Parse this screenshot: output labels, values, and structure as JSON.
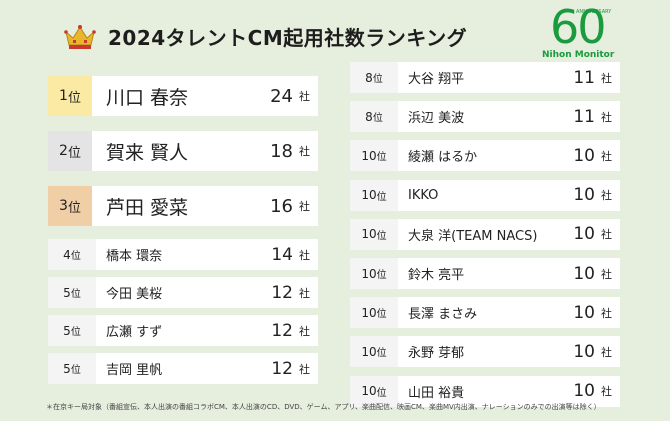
{
  "header": {
    "title": "2024タレントCM起用社数ランキング",
    "crown_icon": "crown-icon",
    "logo": {
      "mark": "60",
      "tagline": "ANNIVERSARY",
      "name": "Nihon Monitor",
      "color": "#1b9a3e"
    }
  },
  "unit": "社",
  "rank_suffix": "位",
  "colors": {
    "gold": "#fbeaa4",
    "silver": "#e4e4e4",
    "bronze": "#f0cfa6",
    "background": "#e6eedd"
  },
  "rankings_left": [
    {
      "rank": "1",
      "name": "川口 春奈",
      "count": "24",
      "tier": "gold"
    },
    {
      "rank": "2",
      "name": "賀来 賢人",
      "count": "18",
      "tier": "silver"
    },
    {
      "rank": "3",
      "name": "芦田 愛菜",
      "count": "16",
      "tier": "bronze"
    },
    {
      "rank": "4",
      "name": "橋本 環奈",
      "count": "14"
    },
    {
      "rank": "5",
      "name": "今田 美桜",
      "count": "12"
    },
    {
      "rank": "5",
      "name": "広瀬 すず",
      "count": "12"
    },
    {
      "rank": "5",
      "name": "吉岡 里帆",
      "count": "12"
    }
  ],
  "rankings_right": [
    {
      "rank": "8",
      "name": "大谷 翔平",
      "count": "11"
    },
    {
      "rank": "8",
      "name": "浜辺 美波",
      "count": "11"
    },
    {
      "rank": "10",
      "name": "綾瀬 はるか",
      "count": "10"
    },
    {
      "rank": "10",
      "name": "IKKO",
      "count": "10"
    },
    {
      "rank": "10",
      "name": "大泉 洋(TEAM NACS)",
      "count": "10"
    },
    {
      "rank": "10",
      "name": "鈴木 亮平",
      "count": "10"
    },
    {
      "rank": "10",
      "name": "長澤 まさみ",
      "count": "10"
    },
    {
      "rank": "10",
      "name": "永野 芽郁",
      "count": "10"
    },
    {
      "rank": "10",
      "name": "山田 裕貴",
      "count": "10"
    }
  ],
  "footnote": "＊在京キー局対象（番組宣伝、本人出演の番組コラボCM、本人出演のCD、DVD、ゲーム、アプリ、楽曲配信、映画CM、楽曲MV内出演、ナレーションのみでの出演等は除く）"
}
